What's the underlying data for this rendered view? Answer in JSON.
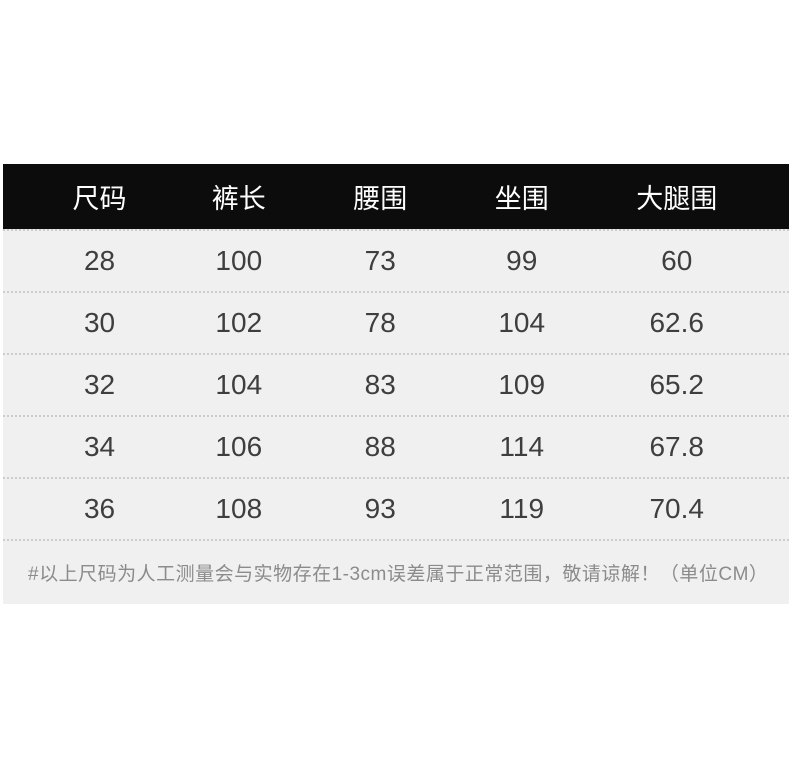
{
  "chart_data": {
    "type": "table",
    "columns": [
      "尺码",
      "裤长",
      "腰围",
      "坐围",
      "大腿围"
    ],
    "rows": [
      [
        28,
        100,
        73,
        99,
        60
      ],
      [
        30,
        102,
        78,
        104,
        62.6
      ],
      [
        32,
        104,
        83,
        109,
        65.2
      ],
      [
        34,
        106,
        88,
        114,
        67.8
      ],
      [
        36,
        108,
        93,
        119,
        70.4
      ]
    ],
    "note": "#以上尺码为人工测量会与实物存在1-3cm误差属于正常范围，敬请谅解！（单位CM）",
    "unit": "CM"
  },
  "colors": {
    "page_bg": "#ffffff",
    "header_bg": "#0c0c0c",
    "header_text": "#ffffff",
    "row_bg": "#f0f0f0",
    "value_text": "#3e3e3e",
    "note_text": "#8b8b8b",
    "divider": "#cccccc"
  }
}
